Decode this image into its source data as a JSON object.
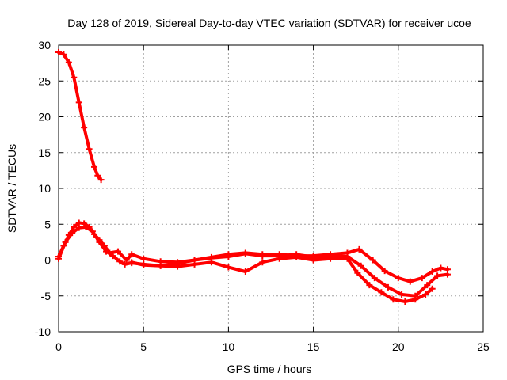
{
  "chart_data": {
    "type": "scatter",
    "title": "Day 128 of 2019, Sidereal Day-to-day VTEC variation (SDTVAR) for receiver ucoe",
    "xlabel": "GPS time / hours",
    "ylabel": "SDTVAR / TECUs",
    "xlim": [
      0,
      25
    ],
    "ylim": [
      -10,
      30
    ],
    "xticks": [
      0,
      5,
      10,
      15,
      20,
      25
    ],
    "yticks": [
      -10,
      -5,
      0,
      5,
      10,
      15,
      20,
      25,
      30
    ],
    "grid": true,
    "marker_color": "#ff0000",
    "series": [
      {
        "name": "steep-decay",
        "x": [
          0.0,
          0.3,
          0.6,
          0.9,
          1.2,
          1.5,
          1.8,
          2.1,
          2.3,
          2.5
        ],
        "y": [
          29.0,
          28.7,
          27.6,
          25.5,
          22.0,
          18.5,
          15.5,
          13.0,
          11.8,
          11.2
        ]
      },
      {
        "name": "track-a",
        "x": [
          0.0,
          0.3,
          0.6,
          0.9,
          1.2,
          1.5,
          1.8,
          2.1,
          2.4,
          2.7,
          3.0,
          3.5,
          4.0,
          4.3,
          5,
          6,
          7,
          8,
          9,
          10,
          11,
          12,
          13,
          14,
          15,
          16,
          17,
          17.7,
          18.5,
          19.2,
          20.0,
          20.7,
          21.4,
          22.0,
          22.5,
          22.9
        ],
        "y": [
          0.5,
          2.0,
          3.5,
          4.6,
          5.2,
          5.1,
          4.6,
          3.6,
          2.8,
          2.0,
          1.0,
          1.2,
          0.0,
          0.8,
          0.2,
          -0.2,
          -0.3,
          0.0,
          0.4,
          0.8,
          1.0,
          0.8,
          0.8,
          0.6,
          0.6,
          0.8,
          1.0,
          1.5,
          0.0,
          -1.5,
          -2.5,
          -3.0,
          -2.5,
          -1.6,
          -1.1,
          -1.3
        ]
      },
      {
        "name": "track-b",
        "x": [
          0.0,
          0.4,
          0.8,
          1.2,
          1.6,
          2.0,
          2.4,
          2.8,
          3.2,
          3.6,
          3.9,
          4.3,
          5,
          6,
          7,
          8,
          9,
          10,
          11,
          12,
          13,
          14,
          15,
          16,
          17,
          17.8,
          18.6,
          19.4,
          20.2,
          21.0,
          21.7,
          22.3,
          22.9
        ],
        "y": [
          0.2,
          2.5,
          3.8,
          4.5,
          4.6,
          4.0,
          2.5,
          1.2,
          0.6,
          -0.2,
          -0.6,
          -0.4,
          -0.6,
          -0.8,
          -0.5,
          0.0,
          0.3,
          0.5,
          0.9,
          0.6,
          0.6,
          0.8,
          0.4,
          0.6,
          0.5,
          -0.8,
          -2.5,
          -3.8,
          -4.8,
          -5.0,
          -3.5,
          -2.2,
          -2.0
        ]
      },
      {
        "name": "track-c",
        "x": [
          4.3,
          5,
          6,
          7,
          8,
          9,
          10,
          11,
          12,
          13,
          14,
          15,
          16,
          17,
          17.6,
          18.3,
          19.0,
          19.7,
          20.4,
          21.0,
          21.6,
          22.0
        ],
        "y": [
          -0.3,
          -0.7,
          -0.8,
          -0.9,
          -0.6,
          -0.3,
          -1.0,
          -1.6,
          -0.3,
          0.2,
          0.4,
          0.0,
          0.2,
          0.2,
          -1.8,
          -3.5,
          -4.5,
          -5.5,
          -5.8,
          -5.5,
          -4.8,
          -4.0
        ]
      }
    ]
  }
}
